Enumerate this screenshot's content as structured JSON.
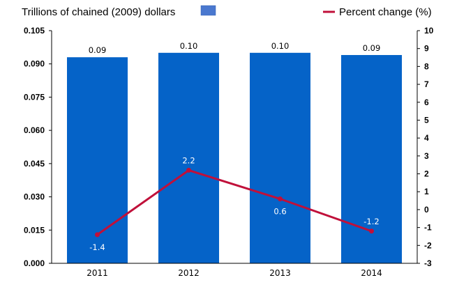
{
  "chart_data": {
    "type": "bar",
    "categories": [
      "2011",
      "2012",
      "2013",
      "2014"
    ],
    "series": [
      {
        "name": "Trillions of chained (2009) dollars",
        "type": "bar",
        "axis": "left",
        "values": [
          0.093,
          0.095,
          0.095,
          0.094
        ],
        "labels": [
          "0.09",
          "0.10",
          "0.10",
          "0.09"
        ],
        "color": "#0563C8"
      },
      {
        "name": "Percent change (%)",
        "type": "line",
        "axis": "right",
        "values": [
          -1.4,
          2.2,
          0.6,
          -1.2
        ],
        "labels": [
          "-1.4",
          "2.2",
          "0.6",
          "-1.2"
        ],
        "color": "#C0103A"
      }
    ],
    "left_axis": {
      "ylim": [
        0,
        0.105
      ],
      "ticks": [
        "0.000",
        "0.015",
        "0.030",
        "0.045",
        "0.060",
        "0.075",
        "0.090",
        "0.105"
      ]
    },
    "right_axis": {
      "ylim": [
        -3,
        10
      ],
      "ticks": [
        "-3",
        "-2",
        "-1",
        "0",
        "1",
        "2",
        "3",
        "4",
        "5",
        "6",
        "7",
        "8",
        "9",
        "10"
      ]
    },
    "legend": [
      "Trillions of chained (2009) dollars",
      "Percent change (%)"
    ],
    "legend_placement": "top",
    "grid": false
  }
}
